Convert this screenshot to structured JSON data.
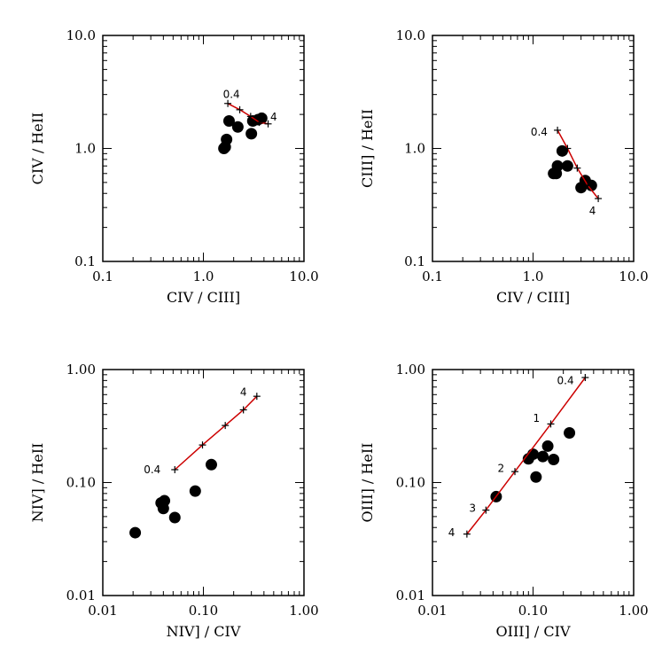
{
  "colors": {
    "model_line": "#cc0000",
    "points": "#000000",
    "axes": "#000000"
  },
  "chart_data": [
    {
      "type": "scatter",
      "xscale": "log",
      "yscale": "log",
      "xlim": [
        0.1,
        10.0
      ],
      "ylim": [
        0.1,
        10.0
      ],
      "xticks": [
        0.1,
        1.0,
        10.0
      ],
      "xtick_labels": [
        "0.1",
        "1.0",
        "10.0"
      ],
      "yticks": [
        0.1,
        1.0,
        10.0
      ],
      "ytick_labels": [
        "0.1",
        "1.0",
        "10.0"
      ],
      "xlabel": "CIV / CIII]",
      "ylabel": "CIV / HeII",
      "points": [
        {
          "x": 1.6,
          "y": 1.0
        },
        {
          "x": 1.65,
          "y": 1.03
        },
        {
          "x": 1.7,
          "y": 1.2
        },
        {
          "x": 1.8,
          "y": 1.75
        },
        {
          "x": 2.2,
          "y": 1.55
        },
        {
          "x": 3.0,
          "y": 1.35
        },
        {
          "x": 3.1,
          "y": 1.75
        },
        {
          "x": 3.5,
          "y": 1.8
        },
        {
          "x": 3.8,
          "y": 1.85
        }
      ],
      "model": [
        {
          "x": 1.75,
          "y": 2.5
        },
        {
          "x": 2.3,
          "y": 2.2
        },
        {
          "x": 2.95,
          "y": 1.92
        },
        {
          "x": 3.6,
          "y": 1.7
        },
        {
          "x": 4.4,
          "y": 1.65
        }
      ],
      "annotations": [
        {
          "text": "0.4",
          "x": 1.9,
          "y": 3.0
        },
        {
          "text": "4",
          "x": 5.0,
          "y": 1.9
        }
      ]
    },
    {
      "type": "scatter",
      "xscale": "log",
      "yscale": "log",
      "xlim": [
        0.1,
        10.0
      ],
      "ylim": [
        0.1,
        10.0
      ],
      "xticks": [
        0.1,
        1.0,
        10.0
      ],
      "xtick_labels": [
        "0.1",
        "1.0",
        "10.0"
      ],
      "yticks": [
        0.1,
        1.0,
        10.0
      ],
      "ytick_labels": [
        "0.1",
        "1.0",
        "10.0"
      ],
      "xlabel": "CIV / CIII]",
      "ylabel": "CIII] / HeII",
      "points": [
        {
          "x": 1.6,
          "y": 0.6
        },
        {
          "x": 1.7,
          "y": 0.6
        },
        {
          "x": 1.75,
          "y": 0.7
        },
        {
          "x": 1.95,
          "y": 0.95
        },
        {
          "x": 2.2,
          "y": 0.7
        },
        {
          "x": 3.0,
          "y": 0.45
        },
        {
          "x": 3.3,
          "y": 0.52
        },
        {
          "x": 3.8,
          "y": 0.47
        }
      ],
      "model": [
        {
          "x": 1.75,
          "y": 1.45
        },
        {
          "x": 2.2,
          "y": 1.0
        },
        {
          "x": 2.75,
          "y": 0.67
        },
        {
          "x": 3.5,
          "y": 0.47
        },
        {
          "x": 4.45,
          "y": 0.36
        }
      ],
      "annotations": [
        {
          "text": "0.4",
          "x": 1.15,
          "y": 1.4
        },
        {
          "text": "4",
          "x": 3.9,
          "y": 0.28
        }
      ]
    },
    {
      "type": "scatter",
      "xscale": "log",
      "yscale": "log",
      "xlim": [
        0.01,
        1.0
      ],
      "ylim": [
        0.01,
        1.0
      ],
      "xticks": [
        0.01,
        0.1,
        1.0
      ],
      "xtick_labels": [
        "0.01",
        "0.10",
        "1.00"
      ],
      "yticks": [
        0.01,
        0.1,
        1.0
      ],
      "ytick_labels": [
        "0.01",
        "0.10",
        "1.00"
      ],
      "xlabel": "NIV] / CIV",
      "ylabel": "NIV] / HeII",
      "points": [
        {
          "x": 0.021,
          "y": 0.036
        },
        {
          "x": 0.038,
          "y": 0.066
        },
        {
          "x": 0.04,
          "y": 0.059
        },
        {
          "x": 0.041,
          "y": 0.069
        },
        {
          "x": 0.052,
          "y": 0.049
        },
        {
          "x": 0.083,
          "y": 0.084
        },
        {
          "x": 0.12,
          "y": 0.144
        }
      ],
      "model": [
        {
          "x": 0.052,
          "y": 0.13
        },
        {
          "x": 0.098,
          "y": 0.215
        },
        {
          "x": 0.165,
          "y": 0.32
        },
        {
          "x": 0.25,
          "y": 0.44
        },
        {
          "x": 0.34,
          "y": 0.58
        }
      ],
      "annotations": [
        {
          "text": "0.4",
          "x": 0.031,
          "y": 0.13
        },
        {
          "text": "4",
          "x": 0.25,
          "y": 0.63
        }
      ]
    },
    {
      "type": "scatter",
      "xscale": "log",
      "yscale": "log",
      "xlim": [
        0.01,
        1.0
      ],
      "ylim": [
        0.01,
        1.0
      ],
      "xticks": [
        0.01,
        0.1,
        1.0
      ],
      "xtick_labels": [
        "0.01",
        "0.10",
        "1.00"
      ],
      "yticks": [
        0.01,
        0.1,
        1.0
      ],
      "ytick_labels": [
        "0.01",
        "0.10",
        "1.00"
      ],
      "xlabel": "OIII] / CIV",
      "ylabel": "OIII] / HeII",
      "points": [
        {
          "x": 0.043,
          "y": 0.075
        },
        {
          "x": 0.09,
          "y": 0.162
        },
        {
          "x": 0.1,
          "y": 0.178
        },
        {
          "x": 0.107,
          "y": 0.112
        },
        {
          "x": 0.125,
          "y": 0.17
        },
        {
          "x": 0.14,
          "y": 0.21
        },
        {
          "x": 0.16,
          "y": 0.16
        },
        {
          "x": 0.23,
          "y": 0.275
        }
      ],
      "model": [
        {
          "x": 0.022,
          "y": 0.035
        },
        {
          "x": 0.034,
          "y": 0.057
        },
        {
          "x": 0.066,
          "y": 0.125
        },
        {
          "x": 0.15,
          "y": 0.33
        },
        {
          "x": 0.33,
          "y": 0.85
        }
      ],
      "annotations": [
        {
          "text": "0.4",
          "x": 0.21,
          "y": 0.8
        },
        {
          "text": "1",
          "x": 0.108,
          "y": 0.37
        },
        {
          "text": "2",
          "x": 0.048,
          "y": 0.134
        },
        {
          "text": "3",
          "x": 0.025,
          "y": 0.059
        },
        {
          "text": "4",
          "x": 0.0155,
          "y": 0.036
        }
      ]
    }
  ]
}
